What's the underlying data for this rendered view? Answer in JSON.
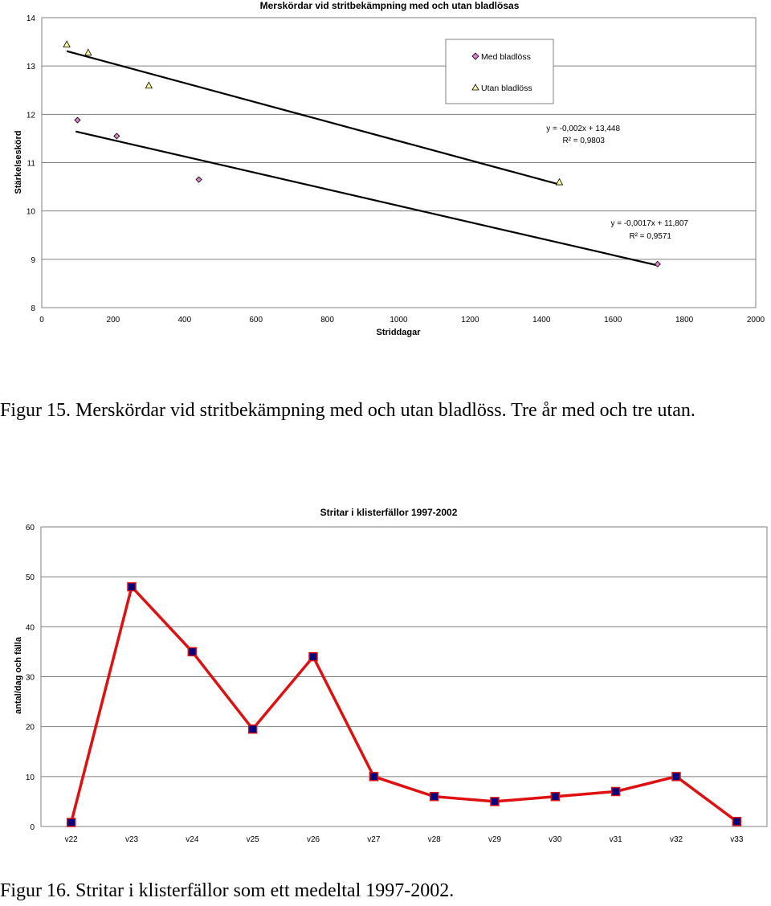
{
  "chart_data": [
    {
      "type": "scatter",
      "title": "Merskördar vid stritbekämpning med och utan bladlösas",
      "xlabel": "Striddagar",
      "ylabel": "Stärkelseskörd",
      "xlim": [
        0,
        2000
      ],
      "ylim": [
        8,
        14
      ],
      "x_ticks": [
        "0",
        "200",
        "400",
        "600",
        "800",
        "1000",
        "1200",
        "1400",
        "1600",
        "1800",
        "2000"
      ],
      "y_ticks": [
        "8",
        "9",
        "10",
        "11",
        "12",
        "13",
        "14"
      ],
      "grid": "horizontal",
      "legend_position": "top-right",
      "series": [
        {
          "name": "Med bladlöss",
          "marker": "diamond",
          "color": "#e07bd0",
          "x": [
            100,
            210,
            440,
            1725
          ],
          "y": [
            11.88,
            11.55,
            10.65,
            8.9
          ],
          "trendline": {
            "equation": "y = -0,0017x + 11,807",
            "r2": "R² = 0,9571",
            "slope": -0.0017,
            "intercept": 11.807,
            "x_range": [
              95,
              1725
            ]
          }
        },
        {
          "name": "Utan bladlöss",
          "marker": "triangle",
          "color": "#ffffa0",
          "x": [
            70,
            130,
            300,
            1450
          ],
          "y": [
            13.45,
            13.28,
            12.6,
            10.6
          ],
          "trendline": {
            "equation": "y = -0,002x + 13,448",
            "r2": "R² = 0,9803",
            "slope": -0.002,
            "intercept": 13.448,
            "x_range": [
              70,
              1450
            ]
          }
        }
      ]
    },
    {
      "type": "line",
      "title": "Stritar i klisterfällor 1997-2002",
      "xlabel": "",
      "ylabel": "antal/dag och fälla",
      "ylim": [
        0,
        60
      ],
      "y_ticks": [
        "0",
        "10",
        "20",
        "30",
        "40",
        "50",
        "60"
      ],
      "grid": "horizontal",
      "line_color": "#e01010",
      "marker_color": "#000080",
      "categories": [
        "v22",
        "v23",
        "v24",
        "v25",
        "v26",
        "v27",
        "v28",
        "v29",
        "v30",
        "v31",
        "v32",
        "v33"
      ],
      "series": [
        {
          "values": [
            0.8,
            48,
            35,
            19.5,
            34,
            10,
            6,
            5,
            6,
            7,
            10,
            1
          ]
        }
      ]
    }
  ],
  "captions": {
    "fig15": "Figur 15. Merskördar vid stritbekämpning med och utan bladlöss. Tre år med och tre utan.",
    "fig16": "Figur 16. Stritar i klisterfällor som ett medeltal 1997-2002."
  }
}
